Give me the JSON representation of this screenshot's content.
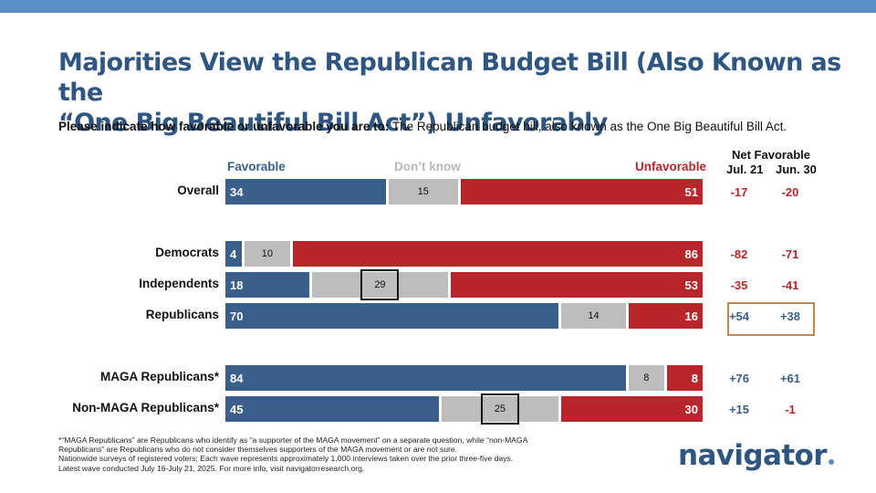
{
  "header": {
    "title_line1": "Majorities View the Republican Budget Bill (Also Known as the",
    "title_line2": "“One Big Beautiful Bill Act”) Unfavorably",
    "question_label": "Please indicate how favorable or unfavorable you are to:",
    "question_text": " The Republican budget bill, also known as the One Big Beautiful Bill Act."
  },
  "chart_data": {
    "type": "bar",
    "stacked": true,
    "orientation": "horizontal",
    "categories": [
      "Overall",
      "Democrats",
      "Independents",
      "Republicans",
      "MAGA Republicans*",
      "Non-MAGA Republicans*"
    ],
    "series": [
      {
        "name": "Favorable",
        "values": [
          34,
          4,
          18,
          70,
          84,
          45
        ]
      },
      {
        "name": "Don’t know",
        "values": [
          15,
          10,
          29,
          14,
          8,
          25
        ]
      },
      {
        "name": "Unfavorable",
        "values": [
          51,
          86,
          53,
          16,
          8,
          30
        ]
      }
    ],
    "legend": [
      "Favorable",
      "Don’t know",
      "Unfavorable"
    ],
    "net_favorable": {
      "title": "Net Favorable",
      "columns": [
        "Jul. 21",
        "Jun. 30"
      ],
      "values": [
        [
          "-17",
          "-20"
        ],
        [
          "-82",
          "-71"
        ],
        [
          "-35",
          "-41"
        ],
        [
          "+54",
          "+38"
        ],
        [
          "+76",
          "+61"
        ],
        [
          "+15",
          "-1"
        ]
      ]
    },
    "boxed_dont_know": [
      "Independents",
      "Non-MAGA Republicans*"
    ],
    "highlighted_net_row": "Republicans",
    "xlim": [
      0,
      100
    ]
  },
  "footnotes": [
    "*“MAGA Republicans” are Republicans who identify as “a supporter of the MAGA movement” on a separate question, while “non-MAGA",
    "Republicans” are Republicans who do not consider themselves supporters of the MAGA movement or are not sure.",
    "Nationwide surveys of registered voters; Each wave represents approximately 1,000 interviews taken over the prior three-five days.",
    "Latest wave conducted July 16-July 21, 2025. For more info, visit navigatorresearch.org."
  ],
  "brand": {
    "logo_text": "navigator",
    "accent": "#5b8fc7"
  },
  "colors": {
    "favorable": "#3a5f8a",
    "dont_know": "#bdbdbd",
    "unfavorable": "#b8262c",
    "highlight": "#c8864a"
  }
}
